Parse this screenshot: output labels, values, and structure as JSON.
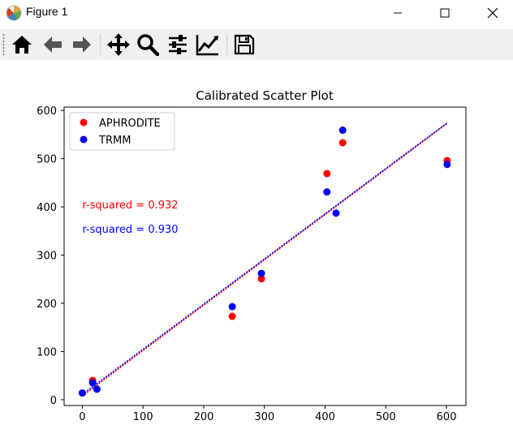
{
  "window": {
    "title": "Figure 1",
    "icons": [
      "matplotlib-icon",
      "minimize-icon",
      "maximize-icon",
      "close-icon"
    ]
  },
  "toolbar": {
    "buttons": [
      "home-icon",
      "back-arrow-icon",
      "forward-arrow-icon",
      "pan-icon",
      "zoom-icon",
      "configure-subplots-icon",
      "edit-axis-icon",
      "save-icon"
    ]
  },
  "chart_data": {
    "type": "scatter",
    "title": "Calibrated Scatter Plot",
    "xlabel": "",
    "ylabel": "",
    "xlim": [
      -30,
      632
    ],
    "ylim": [
      -12,
      607
    ],
    "xticks": [
      0,
      100,
      200,
      300,
      400,
      500,
      600
    ],
    "yticks": [
      0,
      100,
      200,
      300,
      400,
      500,
      600
    ],
    "grid": false,
    "legend_position": "top-left",
    "series": [
      {
        "name": "APHRODITE",
        "color": "#ff0000",
        "points": [
          [
            0,
            14
          ],
          [
            17,
            40
          ],
          [
            24,
            22
          ],
          [
            247,
            173
          ],
          [
            295,
            251
          ],
          [
            403,
            469
          ],
          [
            429,
            533
          ],
          [
            601,
            496
          ]
        ]
      },
      {
        "name": "TRMM",
        "color": "#0000ff",
        "points": [
          [
            0,
            14
          ],
          [
            17,
            35
          ],
          [
            24,
            22
          ],
          [
            247,
            193
          ],
          [
            295,
            262
          ],
          [
            403,
            431
          ],
          [
            418,
            387
          ],
          [
            429,
            559
          ],
          [
            601,
            488
          ]
        ]
      }
    ],
    "fit_lines": [
      {
        "color": "#ff0000",
        "from": [
          0,
          8
        ],
        "to": [
          601,
          573
        ]
      },
      {
        "color": "#0000ff",
        "from": [
          0,
          11
        ],
        "to": [
          601,
          574
        ]
      }
    ],
    "annotations": [
      {
        "text": "r-squared = 0.932",
        "color": "#ff0000",
        "x": 0,
        "y": 405
      },
      {
        "text": "r-squared = 0.930",
        "color": "#0000ff",
        "x": 0,
        "y": 355
      }
    ]
  }
}
